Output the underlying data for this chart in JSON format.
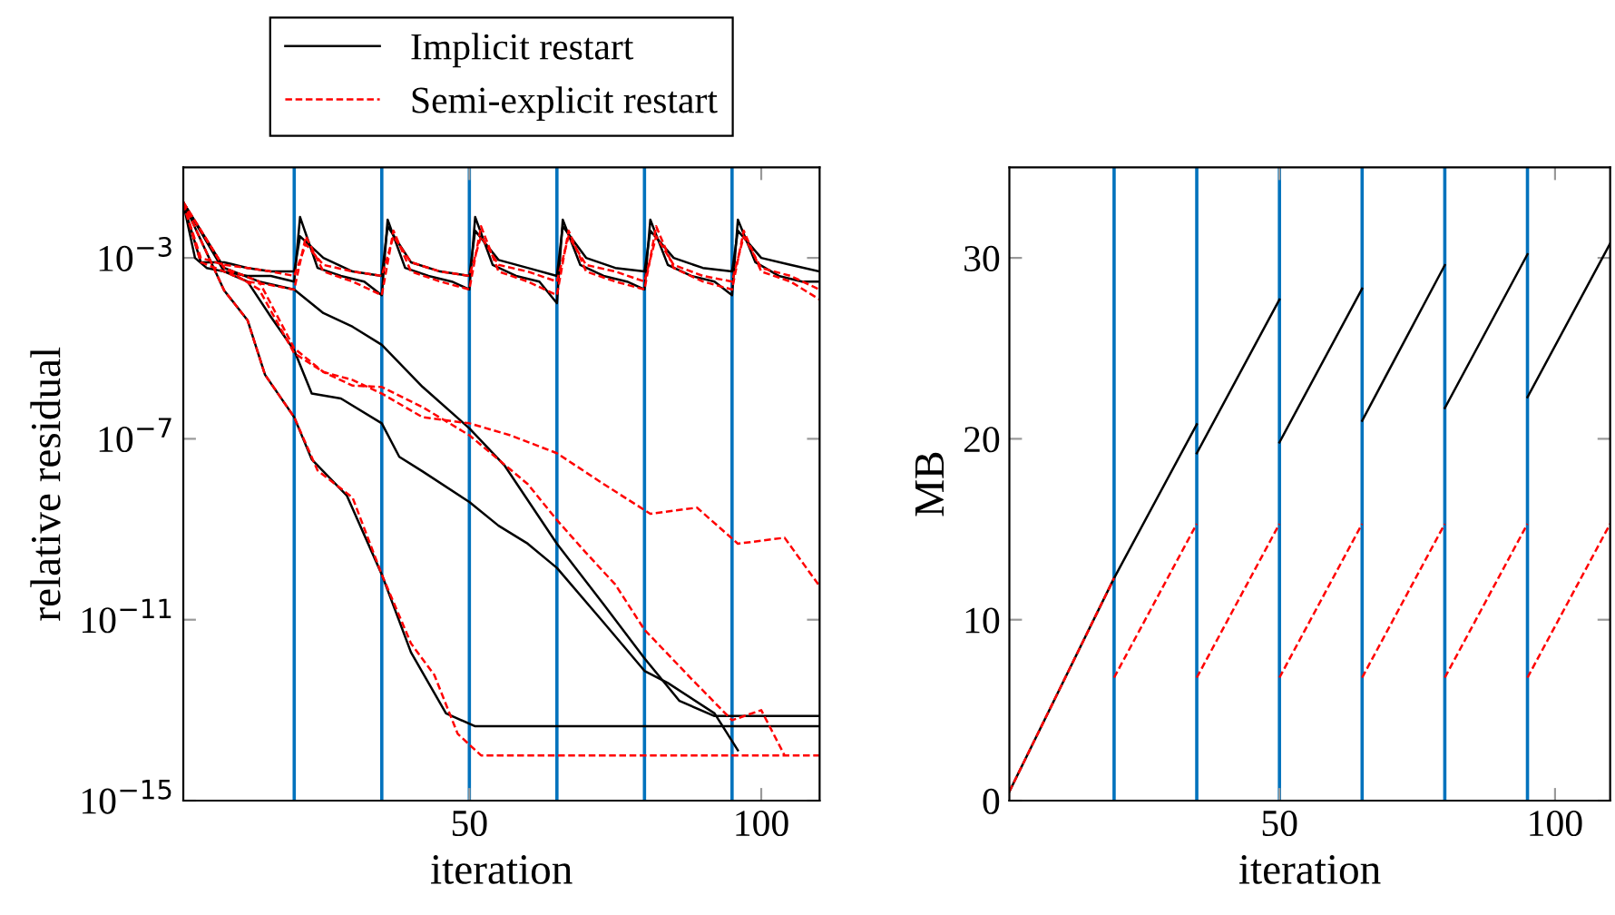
{
  "chart_data": [
    {
      "type": "line",
      "xlabel": "iteration",
      "ylabel": "relative residual",
      "log": "y",
      "legend": "top",
      "xlim": [
        1,
        110
      ],
      "xticks": [
        50,
        100
      ],
      "ylim": [
        1e-15,
        0.1
      ],
      "yticks": [
        {
          "value": 1e-15,
          "label": "10$^{−15}$"
        },
        {
          "value": 1e-11,
          "label": "10$^{−11}$"
        },
        {
          "value": 1e-07,
          "label": "10$^{−7}$"
        },
        {
          "value": 0.001,
          "label": "10$^{−3}$"
        }
      ],
      "ref_lines": [
        {
          "axis": "x",
          "value": 20,
          "color": "#0072bd"
        },
        {
          "axis": "x",
          "value": 35,
          "color": "#0072bd"
        },
        {
          "axis": "x",
          "value": 50,
          "color": "#0072bd"
        },
        {
          "axis": "x",
          "value": 65,
          "color": "#0072bd"
        },
        {
          "axis": "x",
          "value": 80,
          "color": "#0072bd"
        },
        {
          "axis": "x",
          "value": 95,
          "color": "#0072bd"
        }
      ],
      "series": [
        {
          "name": "Implicit restart",
          "color": "#000000",
          "line_style": "solid",
          "x": [
            1,
            8,
            12,
            15,
            20,
            23,
            29,
            35,
            40,
            46,
            51,
            110
          ],
          "values": [
            0.017,
            0.00019,
            4.2e-05,
            2.6e-06,
            3e-07,
            3.5e-08,
            5.6e-09,
            1e-10,
            1.9e-12,
            8.5e-14,
            4.4e-14,
            4.4e-14
          ]
        },
        {
          "color": "#000000",
          "line_style": "solid",
          "x": [
            1,
            8,
            12,
            16,
            20,
            23,
            28,
            35,
            38,
            42,
            50,
            55,
            60,
            65,
            73,
            80,
            84,
            92,
            96
          ],
          "values": [
            0.017,
            0.0005,
            0.0003,
            5e-05,
            9e-06,
            1e-06,
            7.8e-07,
            2.2e-07,
            4e-08,
            1.9e-08,
            4e-09,
            1.2e-09,
            4.8e-10,
            1.4e-10,
            8.7e-12,
            7.4e-13,
            4e-13,
            8.5e-14,
            1.3e-14
          ]
        },
        {
          "color": "#000000",
          "line_style": "solid",
          "x": [
            1,
            8,
            14,
            20,
            25,
            30,
            35,
            42,
            50,
            56,
            65,
            73,
            80,
            86,
            92,
            110
          ],
          "values": [
            0.017,
            0.0006,
            0.0003,
            0.0002,
            6e-05,
            3e-05,
            1.2e-05,
            1.4e-06,
            1.7e-07,
            2.6e-08,
            4.8e-10,
            2.2e-11,
            1.4e-12,
            1.6e-13,
            7.4e-14,
            7.4e-14
          ]
        },
        {
          "color": "#000000",
          "line_style": "solid",
          "x": [
            1,
            3,
            5,
            8,
            12,
            16,
            20,
            21,
            24,
            28,
            32,
            35,
            36,
            39,
            43,
            47,
            50,
            51,
            54,
            58,
            62,
            65,
            66,
            69,
            73,
            77,
            80,
            81,
            84,
            88,
            92,
            95,
            96,
            99,
            103,
            107,
            110
          ],
          "values": [
            0.016,
            0.001,
            0.0006,
            0.0005,
            0.0004,
            0.0004,
            0.0003,
            0.008,
            0.0006,
            0.0004,
            0.0003,
            0.00015,
            0.007,
            0.0006,
            0.0004,
            0.0003,
            0.0002,
            0.008,
            0.0007,
            0.0004,
            0.0003,
            0.0001,
            0.007,
            0.0007,
            0.0004,
            0.0003,
            0.0002,
            0.007,
            0.0007,
            0.0004,
            0.0003,
            0.00015,
            0.007,
            0.0008,
            0.0004,
            0.0003,
            0.0003
          ]
        },
        {
          "color": "#000000",
          "line_style": "solid",
          "x": [
            1,
            4,
            8,
            12,
            16,
            20,
            21,
            25,
            30,
            35,
            36,
            40,
            45,
            50,
            51,
            55,
            60,
            65,
            66,
            70,
            75,
            80,
            81,
            85,
            90,
            95,
            96,
            100,
            105,
            110
          ],
          "values": [
            0.016,
            0.0008,
            0.0008,
            0.0006,
            0.0005,
            0.0005,
            0.003,
            0.001,
            0.0005,
            0.0004,
            0.005,
            0.0008,
            0.0005,
            0.0004,
            0.004,
            0.0009,
            0.0006,
            0.0004,
            0.005,
            0.001,
            0.0006,
            0.0005,
            0.004,
            0.001,
            0.0006,
            0.0005,
            0.004,
            0.001,
            0.0007,
            0.0005
          ]
        },
        {
          "name": "Semi-explicit restart",
          "color": "#ff0000",
          "line_style": "dashed",
          "x": [
            1,
            8,
            12,
            15,
            20,
            24,
            30,
            35,
            40,
            44,
            48,
            52,
            110
          ],
          "values": [
            0.017,
            0.00019,
            4.2e-05,
            2.6e-06,
            3e-07,
            2e-08,
            5e-09,
            1e-10,
            3e-12,
            6e-13,
            3e-14,
            1e-14,
            1e-14
          ]
        },
        {
          "color": "#ff0000",
          "line_style": "dashed",
          "x": [
            1,
            8,
            14,
            20,
            25,
            30,
            35,
            42,
            50,
            57,
            65,
            73,
            81,
            89,
            96,
            104,
            110
          ],
          "values": [
            0.017,
            0.0006,
            0.0002,
            7.8e-06,
            3e-06,
            2e-06,
            1e-06,
            3e-07,
            2.2e-07,
            1.2e-07,
            4.8e-08,
            1e-08,
            2.2e-09,
            3e-09,
            4.8e-10,
            6.5e-10,
            5.5e-11
          ]
        },
        {
          "color": "#ff0000",
          "line_style": "dashed",
          "x": [
            1,
            8,
            14,
            20,
            25,
            30,
            35,
            42,
            50,
            60,
            65,
            70,
            75,
            80,
            88,
            95,
            100,
            104
          ],
          "values": [
            0.017,
            0.0006,
            0.0003,
            1e-05,
            3e-06,
            1.5e-06,
            1.4e-06,
            5e-07,
            1.2e-07,
            1e-08,
            1.6e-09,
            3e-10,
            6e-11,
            6e-12,
            5e-13,
            6e-14,
            1e-13,
            1e-14
          ]
        },
        {
          "color": "#ff0000",
          "line_style": "dashed",
          "x": [
            1,
            4,
            8,
            12,
            16,
            20,
            22,
            25,
            30,
            35,
            37,
            40,
            45,
            50,
            52,
            55,
            60,
            65,
            67,
            70,
            75,
            80,
            82,
            85,
            90,
            95,
            97,
            100,
            105,
            110
          ],
          "values": [
            0.016,
            0.0008,
            0.0005,
            0.0003,
            0.00025,
            0.0002,
            0.003,
            0.0005,
            0.0003,
            0.00015,
            0.004,
            0.0005,
            0.0003,
            0.0002,
            0.005,
            0.0005,
            0.0003,
            0.00015,
            0.004,
            0.0005,
            0.0003,
            0.0002,
            0.005,
            0.0006,
            0.0003,
            0.0002,
            0.004,
            0.0005,
            0.0003,
            0.00012
          ]
        },
        {
          "color": "#ff0000",
          "line_style": "dashed",
          "x": [
            1,
            4,
            8,
            12,
            16,
            20,
            22,
            25,
            30,
            35,
            37,
            40,
            45,
            50,
            52,
            55,
            60,
            65,
            67,
            70,
            75,
            80,
            82,
            85,
            90,
            95,
            97,
            100,
            105,
            110
          ],
          "values": [
            0.016,
            0.001,
            0.0007,
            0.0006,
            0.0005,
            0.0004,
            0.002,
            0.0007,
            0.0005,
            0.0004,
            0.003,
            0.0008,
            0.0005,
            0.0004,
            0.003,
            0.0007,
            0.0005,
            0.0003,
            0.003,
            0.0007,
            0.0005,
            0.0003,
            0.003,
            0.0007,
            0.0004,
            0.0003,
            0.003,
            0.0006,
            0.0004,
            0.0002
          ]
        }
      ]
    },
    {
      "type": "line",
      "xlabel": "iteration",
      "ylabel": "MB",
      "xlim": [
        1,
        110
      ],
      "xticks": [
        50,
        100
      ],
      "ylim": [
        0,
        35
      ],
      "yticks": [
        0,
        10,
        20,
        30
      ],
      "ref_lines": [
        {
          "axis": "x",
          "value": 20,
          "color": "#0072bd"
        },
        {
          "axis": "x",
          "value": 35,
          "color": "#0072bd"
        },
        {
          "axis": "x",
          "value": 50,
          "color": "#0072bd"
        },
        {
          "axis": "x",
          "value": 65,
          "color": "#0072bd"
        },
        {
          "axis": "x",
          "value": 80,
          "color": "#0072bd"
        },
        {
          "axis": "x",
          "value": 95,
          "color": "#0072bd"
        }
      ],
      "series": [
        {
          "color": "#000000",
          "line_style": "solid",
          "x": [
            1,
            20,
            35
          ],
          "values": [
            0.5,
            12.3,
            20.8
          ]
        },
        {
          "color": "#000000",
          "line_style": "solid",
          "x": [
            35,
            50
          ],
          "values": [
            19.2,
            27.7
          ]
        },
        {
          "color": "#000000",
          "line_style": "solid",
          "x": [
            50,
            65
          ],
          "values": [
            19.8,
            28.3
          ]
        },
        {
          "color": "#000000",
          "line_style": "solid",
          "x": [
            65,
            80
          ],
          "values": [
            21,
            29.6
          ]
        },
        {
          "color": "#000000",
          "line_style": "solid",
          "x": [
            80,
            95
          ],
          "values": [
            21.7,
            30.2
          ]
        },
        {
          "color": "#000000",
          "line_style": "solid",
          "x": [
            95,
            110
          ],
          "values": [
            22.3,
            30.8
          ]
        },
        {
          "color": "#ff0000",
          "line_style": "dashed",
          "x": [
            1,
            20
          ],
          "values": [
            0.5,
            12.3
          ]
        },
        {
          "color": "#ff0000",
          "line_style": "dashed",
          "x": [
            20,
            35
          ],
          "values": [
            6.8,
            15.3
          ]
        },
        {
          "color": "#ff0000",
          "line_style": "dashed",
          "x": [
            35,
            50
          ],
          "values": [
            6.8,
            15.3
          ]
        },
        {
          "color": "#ff0000",
          "line_style": "dashed",
          "x": [
            50,
            65
          ],
          "values": [
            6.8,
            15.3
          ]
        },
        {
          "color": "#ff0000",
          "line_style": "dashed",
          "x": [
            65,
            80
          ],
          "values": [
            6.8,
            15.3
          ]
        },
        {
          "color": "#ff0000",
          "line_style": "dashed",
          "x": [
            80,
            95
          ],
          "values": [
            6.8,
            15.3
          ]
        },
        {
          "color": "#ff0000",
          "line_style": "dashed",
          "x": [
            95,
            110
          ],
          "values": [
            6.8,
            15.3
          ]
        }
      ]
    }
  ]
}
